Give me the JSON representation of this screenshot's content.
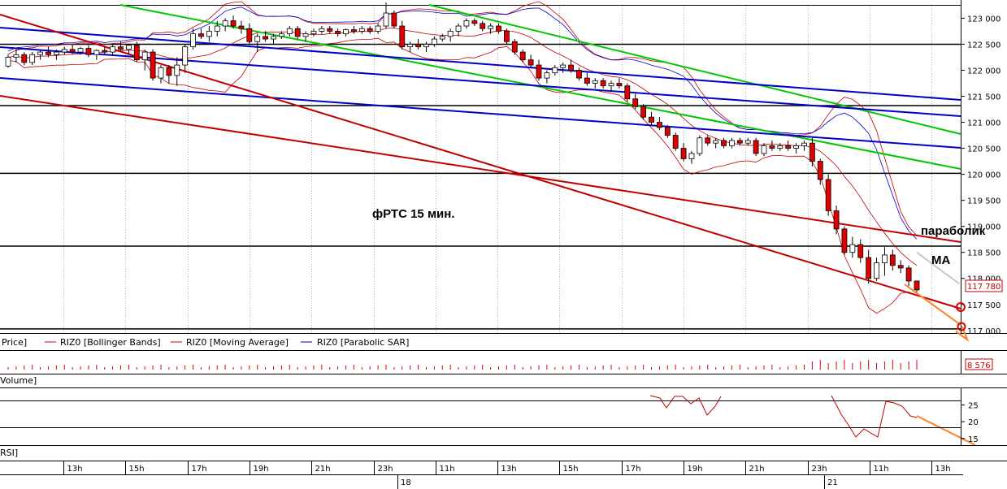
{
  "chart_data": {
    "type": "candlestick",
    "title": "фРТС   15 мин.",
    "price_axis": {
      "ticks": [
        "123 000",
        "122 500",
        "122 000",
        "121 500",
        "121 000",
        "120 500",
        "120 000",
        "119 500",
        "119 000",
        "118 500",
        "118 000",
        "117 500",
        "117 000"
      ],
      "range": [
        116950,
        123350
      ],
      "last_price": "117 780"
    },
    "time_axis": {
      "ticks": [
        "13h",
        "15h",
        "17h",
        "19h",
        "21h",
        "23h",
        "11h",
        "13h",
        "15h",
        "17h",
        "19h",
        "21h",
        "23h",
        "11h",
        "13h"
      ],
      "dates": [
        "18",
        "21"
      ]
    },
    "candles": [
      [
        122080,
        122300,
        122050,
        122250
      ],
      [
        122250,
        122400,
        122150,
        122300
      ],
      [
        122300,
        122350,
        122100,
        122150
      ],
      [
        122150,
        122350,
        122100,
        122300
      ],
      [
        122300,
        122400,
        122200,
        122350
      ],
      [
        122350,
        122450,
        122250,
        122300
      ],
      [
        122300,
        122400,
        122200,
        122350
      ],
      [
        122350,
        122450,
        122300,
        122400
      ],
      [
        122400,
        122500,
        122300,
        122350
      ],
      [
        122350,
        122450,
        122300,
        122420
      ],
      [
        122420,
        122480,
        122250,
        122300
      ],
      [
        122300,
        122400,
        122200,
        122380
      ],
      [
        122380,
        122450,
        122300,
        122350
      ],
      [
        122350,
        122500,
        122300,
        122450
      ],
      [
        122450,
        122550,
        122350,
        122400
      ],
      [
        122400,
        122500,
        122300,
        122480
      ],
      [
        122480,
        122550,
        122150,
        122200
      ],
      [
        122200,
        122400,
        122000,
        122350
      ],
      [
        122350,
        122400,
        121800,
        121850
      ],
      [
        121850,
        122100,
        121750,
        122050
      ],
      [
        122050,
        122100,
        121750,
        121900
      ],
      [
        121900,
        122250,
        121700,
        122100
      ],
      [
        122100,
        122500,
        121950,
        122450
      ],
      [
        122450,
        122800,
        122400,
        122700
      ],
      [
        122700,
        122800,
        122600,
        122650
      ],
      [
        122650,
        122850,
        122550,
        122750
      ],
      [
        122750,
        122950,
        122650,
        122850
      ],
      [
        122850,
        123000,
        122750,
        122950
      ],
      [
        122950,
        123050,
        122800,
        122850
      ],
      [
        122850,
        122950,
        122700,
        122800
      ],
      [
        122800,
        122900,
        122500,
        122550
      ],
      [
        122550,
        122700,
        122350,
        122650
      ],
      [
        122650,
        122750,
        122550,
        122600
      ],
      [
        122600,
        122700,
        122500,
        122650
      ],
      [
        122650,
        122750,
        122600,
        122700
      ],
      [
        122700,
        122850,
        122650,
        122800
      ],
      [
        122800,
        122850,
        122600,
        122650
      ],
      [
        122650,
        122750,
        122550,
        122700
      ],
      [
        122700,
        122800,
        122650,
        122750
      ],
      [
        122750,
        122850,
        122700,
        122800
      ],
      [
        122800,
        122850,
        122700,
        122750
      ],
      [
        122750,
        122800,
        122650,
        122700
      ],
      [
        122700,
        122800,
        122650,
        122780
      ],
      [
        122780,
        122850,
        122700,
        122750
      ],
      [
        122750,
        122850,
        122700,
        122800
      ],
      [
        122800,
        122850,
        122700,
        122750
      ],
      [
        122750,
        122900,
        122700,
        122850
      ],
      [
        122850,
        123300,
        122800,
        123100
      ],
      [
        123100,
        123150,
        122800,
        122850
      ],
      [
        122850,
        122950,
        122400,
        122450
      ],
      [
        122450,
        122550,
        122350,
        122500
      ],
      [
        122500,
        122600,
        122400,
        122450
      ],
      [
        122450,
        122550,
        122350,
        122500
      ],
      [
        122500,
        122650,
        122450,
        122600
      ],
      [
        122600,
        122700,
        122550,
        122650
      ],
      [
        122650,
        122800,
        122550,
        122750
      ],
      [
        122750,
        122900,
        122650,
        122850
      ],
      [
        122850,
        123000,
        122800,
        122950
      ],
      [
        122950,
        123000,
        122850,
        122900
      ],
      [
        122900,
        122950,
        122750,
        122800
      ],
      [
        122800,
        122900,
        122700,
        122850
      ],
      [
        122850,
        122900,
        122700,
        122750
      ],
      [
        122750,
        122800,
        122500,
        122550
      ],
      [
        122550,
        122600,
        122300,
        122350
      ],
      [
        122350,
        122400,
        122150,
        122200
      ],
      [
        122200,
        122300,
        122050,
        122100
      ],
      [
        122100,
        122200,
        121800,
        121850
      ],
      [
        121850,
        122000,
        121750,
        121950
      ],
      [
        121950,
        122100,
        121900,
        122050
      ],
      [
        122050,
        122150,
        121950,
        122100
      ],
      [
        122100,
        122200,
        121950,
        122000
      ],
      [
        122000,
        122050,
        121800,
        121850
      ],
      [
        121850,
        121950,
        121700,
        121750
      ],
      [
        121750,
        121850,
        121650,
        121800
      ],
      [
        121800,
        121850,
        121650,
        121700
      ],
      [
        121700,
        121800,
        121600,
        121750
      ],
      [
        121750,
        121850,
        121650,
        121700
      ],
      [
        121700,
        121750,
        121400,
        121450
      ],
      [
        121450,
        121550,
        121250,
        121300
      ],
      [
        121300,
        121350,
        121050,
        121100
      ],
      [
        121100,
        121200,
        120950,
        121000
      ],
      [
        121000,
        121100,
        120850,
        120900
      ],
      [
        120900,
        120950,
        120700,
        120750
      ],
      [
        120750,
        120800,
        120450,
        120500
      ],
      [
        120500,
        120600,
        120250,
        120300
      ],
      [
        120300,
        120450,
        120200,
        120400
      ],
      [
        120400,
        120750,
        120350,
        120700
      ],
      [
        120700,
        120750,
        120550,
        120600
      ],
      [
        120600,
        120700,
        120500,
        120650
      ],
      [
        120650,
        120700,
        120500,
        120550
      ],
      [
        120550,
        120700,
        120500,
        120650
      ],
      [
        120650,
        120700,
        120550,
        120600
      ],
      [
        120600,
        120700,
        120550,
        120650
      ],
      [
        120650,
        120700,
        120350,
        120400
      ],
      [
        120400,
        120600,
        120350,
        120550
      ],
      [
        120550,
        120650,
        120450,
        120500
      ],
      [
        120500,
        120600,
        120450,
        120550
      ],
      [
        120550,
        120650,
        120450,
        120500
      ],
      [
        120500,
        120600,
        120400,
        120550
      ],
      [
        120550,
        120650,
        120450,
        120600
      ],
      [
        120600,
        120700,
        120150,
        120250
      ],
      [
        120250,
        120300,
        119800,
        119900
      ],
      [
        119900,
        120000,
        119200,
        119300
      ],
      [
        119300,
        119400,
        118850,
        118950
      ],
      [
        118950,
        119000,
        118450,
        118500
      ],
      [
        118500,
        118800,
        118400,
        118650
      ],
      [
        118650,
        118750,
        118300,
        118400
      ],
      [
        118400,
        118550,
        117900,
        118000
      ],
      [
        118000,
        118400,
        117950,
        118300
      ],
      [
        118300,
        118600,
        118050,
        118450
      ],
      [
        118450,
        118550,
        118150,
        118250
      ],
      [
        118250,
        118350,
        118100,
        118200
      ],
      [
        118200,
        118250,
        117850,
        117950
      ],
      [
        117950,
        117950,
        117700,
        117780
      ]
    ],
    "indicators": [
      {
        "name": "RIZ0 [Bollinger Bands]",
        "color": "#c00000"
      },
      {
        "name": "RIZ0 [Moving Average]",
        "color": "#c00000"
      },
      {
        "name": "RIZ0 [Parabolic SAR]",
        "color": "#0000a0"
      }
    ],
    "annotations": [
      "параболик",
      "MA"
    ],
    "volume_panel": {
      "label": "Volume]",
      "last_value": "8 576"
    },
    "rsi_panel": {
      "label": "RSI]",
      "ticks": [
        "25",
        "20",
        "15"
      ],
      "range": [
        13,
        30
      ]
    }
  },
  "legend_prefix": "Price]",
  "colors": {
    "up": "#ffffff",
    "down": "#e00000",
    "wick": "#000000",
    "green": "#00c800",
    "blue": "#0000c8",
    "red": "#c00000",
    "orange": "#ff8020"
  }
}
